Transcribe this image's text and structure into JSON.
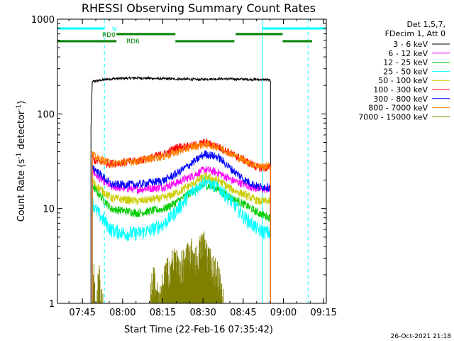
{
  "chart_data": {
    "type": "line",
    "title": "RHESSI Observing Summary Count Rates",
    "xlabel": "Start Time (22-Feb-16 07:35:42)",
    "ylabel_parts": [
      "Count Rate (s",
      "-1",
      " detector",
      "-1",
      ")"
    ],
    "yscale": "log",
    "ylim": [
      1,
      1000
    ],
    "y_ticks": [
      {
        "value": 1,
        "label": "1"
      },
      {
        "value": 10,
        "label": "10"
      },
      {
        "value": 100,
        "label": "100"
      },
      {
        "value": 1000,
        "label": "1000"
      }
    ],
    "x_unit": "minutes since 07:35:42",
    "xlim": [
      0,
      100.3
    ],
    "x_ticks": [
      {
        "value": 9.3,
        "label": "07:45"
      },
      {
        "value": 24.3,
        "label": "08:00"
      },
      {
        "value": 39.3,
        "label": "08:15"
      },
      {
        "value": 54.3,
        "label": "08:30"
      },
      {
        "value": 69.3,
        "label": "08:45"
      },
      {
        "value": 84.3,
        "label": "09:00"
      },
      {
        "value": 99.3,
        "label": "09:15"
      }
    ],
    "legend_header": [
      "Det 1,5,7,",
      "FDecim 1, Att 0"
    ],
    "series": [
      {
        "name": "3 - 6 keV",
        "color": "#000000",
        "x": [
          12.5,
          13.0,
          20,
          30,
          40,
          50,
          53,
          54,
          60,
          70,
          78,
          79.5
        ],
        "y": [
          70,
          220,
          235,
          240,
          235,
          232,
          230,
          232,
          235,
          232,
          230,
          225
        ]
      },
      {
        "name": "6 - 12 keV",
        "color": "#ff00ff",
        "x": [
          13.0,
          14,
          20,
          30,
          40,
          45,
          50,
          55,
          60,
          65,
          70,
          75,
          79.5
        ],
        "y": [
          25,
          23,
          17,
          16,
          17,
          19,
          22,
          26,
          24,
          20,
          18,
          16,
          16
        ]
      },
      {
        "name": "12 - 25 keV",
        "color": "#00cc00",
        "x": [
          13.0,
          14,
          20,
          30,
          40,
          45,
          50,
          55,
          60,
          65,
          70,
          75,
          79.5
        ],
        "y": [
          18,
          16,
          10,
          9,
          10,
          12,
          15,
          18,
          16,
          13,
          11,
          9,
          8
        ]
      },
      {
        "name": "25 - 50 keV",
        "color": "#00ffff",
        "x": [
          13.0,
          14,
          20,
          25,
          30,
          35,
          40,
          45,
          50,
          55,
          60,
          65,
          70,
          75,
          79.5
        ],
        "y": [
          12,
          10,
          6,
          5.5,
          5.5,
          6,
          7,
          10,
          15,
          20,
          17,
          12,
          8,
          6,
          5.5
        ]
      },
      {
        "name": "50 - 100 keV",
        "color": "#cccc00",
        "x": [
          13.0,
          14,
          20,
          30,
          40,
          45,
          50,
          55,
          60,
          65,
          70,
          75,
          79.5
        ],
        "y": [
          20,
          18,
          13,
          12,
          13,
          15,
          18,
          22,
          20,
          16,
          14,
          12,
          12
        ]
      },
      {
        "name": "100 - 300 keV",
        "color": "#ff0000",
        "x": [
          13.0,
          14,
          20,
          30,
          40,
          45,
          50,
          55,
          60,
          65,
          70,
          75,
          79.5
        ],
        "y": [
          35,
          32,
          30,
          32,
          38,
          45,
          46,
          50,
          45,
          38,
          32,
          27,
          27
        ]
      },
      {
        "name": "300 - 800 keV",
        "color": "#0000ff",
        "x": [
          13.0,
          14,
          20,
          30,
          40,
          45,
          50,
          55,
          60,
          65,
          70,
          75,
          79.5
        ],
        "y": [
          28,
          26,
          18,
          18,
          20,
          24,
          30,
          38,
          35,
          26,
          20,
          17,
          17
        ]
      },
      {
        "name": "800 - 7000 keV",
        "color": "#ff8000",
        "x": [
          13.0,
          14,
          20,
          30,
          40,
          45,
          50,
          55,
          60,
          65,
          70,
          75,
          79.5
        ],
        "y": [
          38,
          35,
          30,
          32,
          36,
          40,
          45,
          48,
          45,
          38,
          32,
          28,
          28
        ]
      },
      {
        "name": "7000 - 15000 keV",
        "color": "#808000",
        "x": [
          13.0,
          13.5,
          14.5,
          15.5,
          17,
          34,
          36,
          38,
          40,
          42,
          44,
          46,
          48,
          50,
          52,
          53.5,
          54.5,
          56,
          58,
          60,
          62
        ],
        "y": [
          1,
          2,
          1,
          2,
          1,
          1,
          2,
          1,
          2,
          2.5,
          3,
          2.5,
          3,
          3.5,
          3,
          4,
          4.5,
          3.5,
          2.5,
          2,
          1
        ]
      }
    ],
    "annotations": [
      {
        "text": "N",
        "color": "#00ffff"
      },
      {
        "text": "RD0",
        "color": "#008000"
      },
      {
        "text": "RD6",
        "color": "#008000"
      }
    ],
    "status_bars": {
      "N": {
        "color": "#00ffff",
        "segments": [
          [
            0,
            17.5
          ],
          [
            76.5,
            100
          ]
        ]
      },
      "RD0": {
        "color": "#008000",
        "segments": [
          [
            22,
            44
          ],
          [
            66.5,
            84
          ]
        ]
      },
      "RD6": {
        "color": "#008000",
        "segments": [
          [
            0,
            22
          ],
          [
            44,
            66
          ],
          [
            84,
            95
          ]
        ]
      }
    },
    "vertical_lines": [
      {
        "x": 0.0,
        "color": "#00ffff",
        "style": "solid"
      },
      {
        "x": 17.5,
        "color": "#00ffff",
        "style": "dashed"
      },
      {
        "x": 76.5,
        "color": "#00ffff",
        "style": "solid"
      },
      {
        "x": 93.5,
        "color": "#00ffff",
        "style": "dashed"
      }
    ],
    "grid": false,
    "legend_position": "top-right"
  },
  "footer": {
    "timestamp": "26-Oct-2021 21:18"
  }
}
